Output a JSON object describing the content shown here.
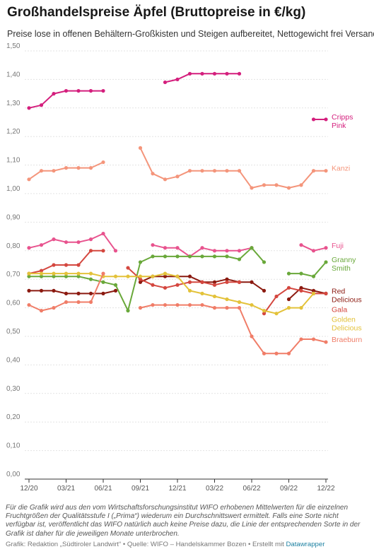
{
  "title": "Großhandelspreise Äpfel (Bruttopreise in €/kg)",
  "subtitle": "Preise lose in offenen Behältern-Großkisten und Steigen aufbereitet, Nettogewicht frei Versand",
  "notes": "Für die Grafik wird aus den vom Wirtschaftsforschungsinstitut WIFO erhobenen Mittelwerten für die einzelnen Fruchtgrößen der Qualitätsstufe I („Prima“) wiederum ein Durchschnittswert ermittelt. Falls eine Sorte nicht verfügbar ist, veröffentlicht das WIFO natürlich auch keine Preise dazu, die Linie der entsprechenden Sorte in der Grafik ist daher für die jeweiligen Monate unterbrochen.",
  "source": {
    "text": "Grafik: Redaktion „Südtiroler Landwirt“ • Quelle: WIFO – Handelskammer Bozen • Erstellt mit ",
    "link": "Datawrapper"
  },
  "chart_data": {
    "type": "line",
    "ylim": [
      0,
      1.5
    ],
    "yticks": [
      "0,00",
      "0,10",
      "0,20",
      "0,30",
      "0,40",
      "0,50",
      "0,60",
      "0,70",
      "0,80",
      "0,90",
      "1,00",
      "1,10",
      "1,20",
      "1,30",
      "1,40",
      "1,50"
    ],
    "xticks": [
      {
        "label": "12/20",
        "at": 0
      },
      {
        "label": "03/21",
        "at": 3
      },
      {
        "label": "06/21",
        "at": 6
      },
      {
        "label": "09/21",
        "at": 9
      },
      {
        "label": "12/21",
        "at": 12
      },
      {
        "label": "03/22",
        "at": 15
      },
      {
        "label": "06/22",
        "at": 18
      },
      {
        "label": "09/22",
        "at": 21
      },
      {
        "label": "12/22",
        "at": 24
      }
    ],
    "months": [
      "12/20",
      "01/21",
      "02/21",
      "03/21",
      "04/21",
      "05/21",
      "06/21",
      "07/21",
      "08/21",
      "09/21",
      "10/21",
      "11/21",
      "12/21",
      "01/22",
      "02/22",
      "03/22",
      "04/22",
      "05/22",
      "06/22",
      "07/22",
      "08/22",
      "09/22",
      "10/22",
      "11/22",
      "12/22"
    ],
    "series": [
      {
        "name": "Cripps Pink",
        "color": "#d41f7d",
        "values": [
          1.3,
          1.31,
          1.35,
          1.36,
          1.36,
          1.36,
          1.36,
          null,
          null,
          null,
          null,
          1.39,
          1.4,
          1.42,
          1.42,
          1.42,
          1.42,
          1.42,
          null,
          null,
          null,
          null,
          null,
          1.26,
          1.26
        ]
      },
      {
        "name": "Kanzi",
        "color": "#f4957b",
        "values": [
          1.05,
          1.08,
          1.08,
          1.09,
          1.09,
          1.09,
          1.11,
          null,
          null,
          1.16,
          1.07,
          1.05,
          1.06,
          1.08,
          1.08,
          1.08,
          1.08,
          1.08,
          1.02,
          1.03,
          1.03,
          1.02,
          1.03,
          1.08,
          1.08
        ]
      },
      {
        "name": "Fuji",
        "color": "#e8538e",
        "values": [
          0.81,
          0.82,
          0.84,
          0.83,
          0.83,
          0.84,
          0.86,
          0.8,
          null,
          null,
          0.82,
          0.81,
          0.81,
          0.78,
          0.81,
          0.8,
          0.8,
          0.8,
          0.81,
          null,
          null,
          null,
          0.82,
          0.8,
          0.81
        ]
      },
      {
        "name": "Granny Smith",
        "color": "#69a83a",
        "values": [
          0.71,
          0.71,
          0.71,
          0.71,
          0.71,
          0.7,
          0.69,
          0.68,
          0.59,
          0.76,
          0.78,
          0.78,
          0.78,
          0.78,
          0.78,
          0.78,
          0.78,
          0.77,
          0.81,
          0.76,
          null,
          0.72,
          0.72,
          0.71,
          0.76
        ]
      },
      {
        "name": "Red Delicious",
        "color": "#8b1a10",
        "values": [
          0.66,
          0.66,
          0.66,
          0.65,
          0.65,
          0.65,
          0.65,
          0.66,
          null,
          0.69,
          0.71,
          0.71,
          0.71,
          0.71,
          0.69,
          0.69,
          0.7,
          0.69,
          0.69,
          0.66,
          null,
          0.63,
          0.67,
          0.66,
          0.65
        ]
      },
      {
        "name": "Gala",
        "color": "#d4473f",
        "values": [
          0.72,
          0.73,
          0.75,
          0.75,
          0.75,
          0.8,
          0.8,
          null,
          0.74,
          0.7,
          0.68,
          0.67,
          0.68,
          0.69,
          0.69,
          0.68,
          0.69,
          0.69,
          null,
          0.58,
          0.64,
          0.67,
          0.66,
          0.65,
          0.65
        ]
      },
      {
        "name": "Golden Delicious",
        "color": "#e3c23a",
        "values": [
          0.72,
          0.72,
          0.72,
          0.72,
          0.72,
          0.72,
          0.71,
          0.71,
          0.71,
          0.71,
          0.71,
          0.72,
          0.71,
          0.66,
          0.65,
          0.64,
          0.63,
          0.62,
          0.61,
          0.59,
          0.58,
          0.6,
          0.6,
          0.65,
          null
        ]
      },
      {
        "name": "Braeburn",
        "color": "#f07d68",
        "values": [
          0.61,
          0.59,
          0.6,
          0.62,
          0.62,
          0.62,
          0.72,
          null,
          null,
          0.6,
          0.61,
          0.61,
          0.61,
          0.61,
          0.61,
          0.6,
          0.6,
          0.6,
          0.5,
          0.44,
          0.44,
          0.44,
          0.49,
          0.49,
          0.48
        ]
      }
    ]
  }
}
